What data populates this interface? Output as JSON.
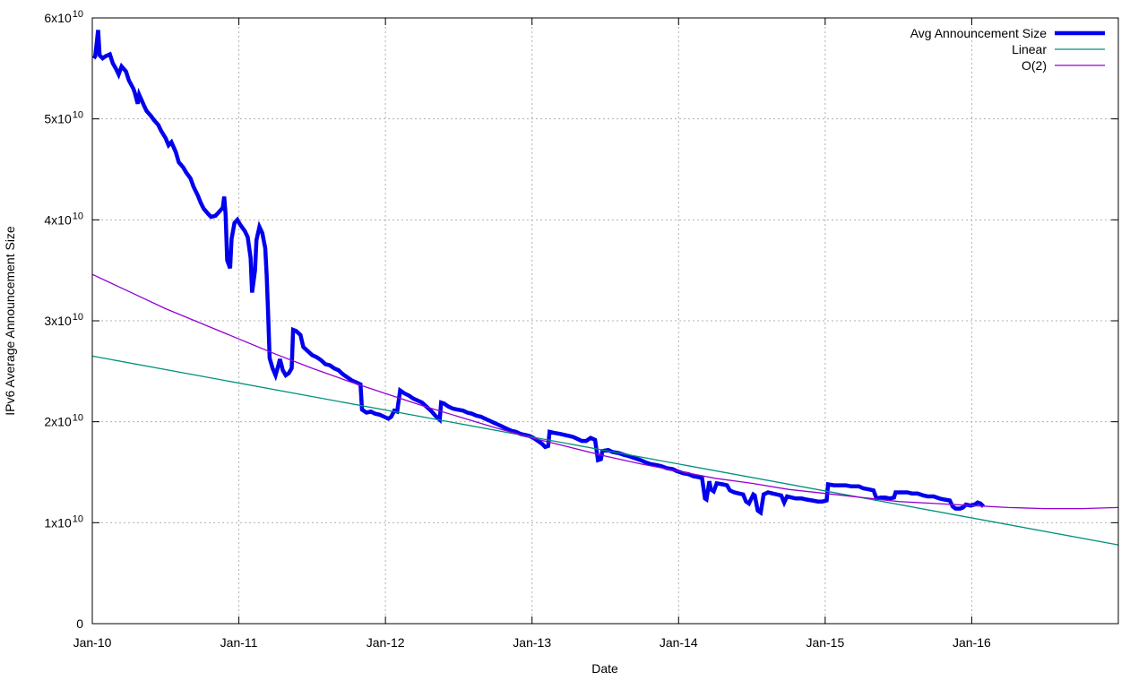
{
  "figure": {
    "background": "#ffffff",
    "border_color": "#000000",
    "grid_color": "#b0b0b0",
    "tick_color": "#000000",
    "text_color": "#000000"
  },
  "chart_data": {
    "type": "line",
    "title": "",
    "xlabel": "Date",
    "ylabel": "IPv6 Average Announcement Size",
    "xlim": [
      0,
      7
    ],
    "ylim": [
      0,
      60000000000
    ],
    "y_scale": 10000000000,
    "grid": true,
    "legend_position": "top-right-inside",
    "x_ticks": [
      {
        "u": 0,
        "label": "Jan-10"
      },
      {
        "u": 1,
        "label": "Jan-11"
      },
      {
        "u": 2,
        "label": "Jan-12"
      },
      {
        "u": 3,
        "label": "Jan-13"
      },
      {
        "u": 4,
        "label": "Jan-14"
      },
      {
        "u": 5,
        "label": "Jan-15"
      },
      {
        "u": 6,
        "label": "Jan-16"
      }
    ],
    "y_ticks": [
      {
        "v": 0,
        "base": "0",
        "exp": ""
      },
      {
        "v": 1,
        "base": "1x10",
        "exp": "10"
      },
      {
        "v": 2,
        "base": "2x10",
        "exp": "10"
      },
      {
        "v": 3,
        "base": "3x10",
        "exp": "10"
      },
      {
        "v": 4,
        "base": "4x10",
        "exp": "10"
      },
      {
        "v": 5,
        "base": "5x10",
        "exp": "10"
      },
      {
        "v": 6,
        "base": "6x10",
        "exp": "10"
      }
    ],
    "series": [
      {
        "name": "Avg Announcement Size",
        "color": "#0000ee",
        "stroke_width": 4.5,
        "points": [
          [
            0.01,
            5.6
          ],
          [
            0.02,
            5.62
          ],
          [
            0.04,
            5.88
          ],
          [
            0.05,
            5.63
          ],
          [
            0.07,
            5.6
          ],
          [
            0.09,
            5.62
          ],
          [
            0.12,
            5.64
          ],
          [
            0.14,
            5.55
          ],
          [
            0.16,
            5.5
          ],
          [
            0.18,
            5.44
          ],
          [
            0.2,
            5.52
          ],
          [
            0.23,
            5.47
          ],
          [
            0.25,
            5.38
          ],
          [
            0.28,
            5.3
          ],
          [
            0.29,
            5.26
          ],
          [
            0.31,
            5.15
          ],
          [
            0.32,
            5.24
          ],
          [
            0.35,
            5.14
          ],
          [
            0.37,
            5.08
          ],
          [
            0.4,
            5.03
          ],
          [
            0.42,
            4.99
          ],
          [
            0.45,
            4.94
          ],
          [
            0.47,
            4.88
          ],
          [
            0.5,
            4.81
          ],
          [
            0.52,
            4.74
          ],
          [
            0.54,
            4.77
          ],
          [
            0.57,
            4.67
          ],
          [
            0.59,
            4.57
          ],
          [
            0.62,
            4.52
          ],
          [
            0.64,
            4.47
          ],
          [
            0.67,
            4.41
          ],
          [
            0.69,
            4.33
          ],
          [
            0.72,
            4.24
          ],
          [
            0.74,
            4.17
          ],
          [
            0.76,
            4.11
          ],
          [
            0.79,
            4.06
          ],
          [
            0.81,
            4.03
          ],
          [
            0.84,
            4.04
          ],
          [
            0.86,
            4.07
          ],
          [
            0.89,
            4.12
          ],
          [
            0.9,
            4.23
          ],
          [
            0.91,
            4.05
          ],
          [
            0.92,
            3.6
          ],
          [
            0.94,
            3.52
          ],
          [
            0.95,
            3.81
          ],
          [
            0.97,
            3.97
          ],
          [
            0.99,
            4.0
          ],
          [
            1.01,
            3.95
          ],
          [
            1.04,
            3.89
          ],
          [
            1.06,
            3.83
          ],
          [
            1.08,
            3.62
          ],
          [
            1.09,
            3.28
          ],
          [
            1.11,
            3.5
          ],
          [
            1.12,
            3.8
          ],
          [
            1.14,
            3.93
          ],
          [
            1.16,
            3.87
          ],
          [
            1.18,
            3.72
          ],
          [
            1.19,
            3.45
          ],
          [
            1.2,
            3.05
          ],
          [
            1.21,
            2.63
          ],
          [
            1.23,
            2.53
          ],
          [
            1.25,
            2.46
          ],
          [
            1.27,
            2.56
          ],
          [
            1.28,
            2.62
          ],
          [
            1.3,
            2.51
          ],
          [
            1.32,
            2.46
          ],
          [
            1.34,
            2.48
          ],
          [
            1.36,
            2.53
          ],
          [
            1.37,
            2.91
          ],
          [
            1.39,
            2.9
          ],
          [
            1.42,
            2.86
          ],
          [
            1.44,
            2.74
          ],
          [
            1.47,
            2.7
          ],
          [
            1.5,
            2.66
          ],
          [
            1.53,
            2.64
          ],
          [
            1.56,
            2.61
          ],
          [
            1.59,
            2.57
          ],
          [
            1.62,
            2.56
          ],
          [
            1.65,
            2.53
          ],
          [
            1.68,
            2.51
          ],
          [
            1.71,
            2.47
          ],
          [
            1.74,
            2.44
          ],
          [
            1.77,
            2.41
          ],
          [
            1.8,
            2.39
          ],
          [
            1.83,
            2.37
          ],
          [
            1.84,
            2.12
          ],
          [
            1.87,
            2.09
          ],
          [
            1.9,
            2.1
          ],
          [
            1.93,
            2.08
          ],
          [
            1.96,
            2.07
          ],
          [
            1.99,
            2.05
          ],
          [
            2.02,
            2.03
          ],
          [
            2.04,
            2.05
          ],
          [
            2.06,
            2.11
          ],
          [
            2.08,
            2.1
          ],
          [
            2.1,
            2.31
          ],
          [
            2.13,
            2.28
          ],
          [
            2.16,
            2.26
          ],
          [
            2.19,
            2.23
          ],
          [
            2.22,
            2.21
          ],
          [
            2.25,
            2.19
          ],
          [
            2.28,
            2.15
          ],
          [
            2.31,
            2.11
          ],
          [
            2.34,
            2.06
          ],
          [
            2.37,
            2.02
          ],
          [
            2.38,
            2.19
          ],
          [
            2.4,
            2.18
          ],
          [
            2.43,
            2.15
          ],
          [
            2.46,
            2.13
          ],
          [
            2.49,
            2.12
          ],
          [
            2.53,
            2.11
          ],
          [
            2.56,
            2.09
          ],
          [
            2.59,
            2.08
          ],
          [
            2.62,
            2.06
          ],
          [
            2.65,
            2.05
          ],
          [
            2.68,
            2.03
          ],
          [
            2.71,
            2.01
          ],
          [
            2.74,
            1.99
          ],
          [
            2.77,
            1.97
          ],
          [
            2.8,
            1.95
          ],
          [
            2.83,
            1.93
          ],
          [
            2.86,
            1.91
          ],
          [
            2.89,
            1.9
          ],
          [
            2.92,
            1.88
          ],
          [
            2.95,
            1.87
          ],
          [
            2.98,
            1.86
          ],
          [
            3.01,
            1.84
          ],
          [
            3.04,
            1.81
          ],
          [
            3.07,
            1.78
          ],
          [
            3.09,
            1.75
          ],
          [
            3.11,
            1.76
          ],
          [
            3.12,
            1.9
          ],
          [
            3.15,
            1.89
          ],
          [
            3.19,
            1.88
          ],
          [
            3.22,
            1.87
          ],
          [
            3.25,
            1.86
          ],
          [
            3.28,
            1.85
          ],
          [
            3.31,
            1.83
          ],
          [
            3.34,
            1.81
          ],
          [
            3.37,
            1.81
          ],
          [
            3.4,
            1.84
          ],
          [
            3.43,
            1.82
          ],
          [
            3.45,
            1.62
          ],
          [
            3.47,
            1.63
          ],
          [
            3.48,
            1.71
          ],
          [
            3.52,
            1.72
          ],
          [
            3.55,
            1.7
          ],
          [
            3.59,
            1.69
          ],
          [
            3.63,
            1.67
          ],
          [
            3.66,
            1.66
          ],
          [
            3.7,
            1.64
          ],
          [
            3.74,
            1.62
          ],
          [
            3.77,
            1.6
          ],
          [
            3.81,
            1.58
          ],
          [
            3.85,
            1.57
          ],
          [
            3.88,
            1.56
          ],
          [
            3.92,
            1.54
          ],
          [
            3.96,
            1.53
          ],
          [
            3.99,
            1.51
          ],
          [
            4.03,
            1.49
          ],
          [
            4.07,
            1.48
          ],
          [
            4.1,
            1.46
          ],
          [
            4.14,
            1.45
          ],
          [
            4.16,
            1.44
          ],
          [
            4.18,
            1.24
          ],
          [
            4.19,
            1.23
          ],
          [
            4.21,
            1.41
          ],
          [
            4.22,
            1.33
          ],
          [
            4.24,
            1.31
          ],
          [
            4.26,
            1.39
          ],
          [
            4.3,
            1.38
          ],
          [
            4.33,
            1.37
          ],
          [
            4.35,
            1.32
          ],
          [
            4.38,
            1.3
          ],
          [
            4.41,
            1.29
          ],
          [
            4.44,
            1.28
          ],
          [
            4.46,
            1.21
          ],
          [
            4.48,
            1.19
          ],
          [
            4.51,
            1.28
          ],
          [
            4.52,
            1.27
          ],
          [
            4.54,
            1.12
          ],
          [
            4.56,
            1.1
          ],
          [
            4.58,
            1.28
          ],
          [
            4.61,
            1.3
          ],
          [
            4.64,
            1.29
          ],
          [
            4.67,
            1.28
          ],
          [
            4.7,
            1.27
          ],
          [
            4.72,
            1.2
          ],
          [
            4.74,
            1.26
          ],
          [
            4.77,
            1.25
          ],
          [
            4.8,
            1.24
          ],
          [
            4.84,
            1.24
          ],
          [
            4.87,
            1.23
          ],
          [
            4.91,
            1.22
          ],
          [
            4.95,
            1.21
          ],
          [
            4.98,
            1.21
          ],
          [
            5.01,
            1.22
          ],
          [
            5.02,
            1.38
          ],
          [
            5.06,
            1.37
          ],
          [
            5.1,
            1.37
          ],
          [
            5.14,
            1.37
          ],
          [
            5.18,
            1.36
          ],
          [
            5.23,
            1.36
          ],
          [
            5.26,
            1.34
          ],
          [
            5.3,
            1.33
          ],
          [
            5.33,
            1.32
          ],
          [
            5.35,
            1.24
          ],
          [
            5.38,
            1.25
          ],
          [
            5.41,
            1.25
          ],
          [
            5.44,
            1.24
          ],
          [
            5.47,
            1.25
          ],
          [
            5.48,
            1.3
          ],
          [
            5.52,
            1.3
          ],
          [
            5.56,
            1.3
          ],
          [
            5.59,
            1.29
          ],
          [
            5.63,
            1.29
          ],
          [
            5.67,
            1.27
          ],
          [
            5.7,
            1.26
          ],
          [
            5.74,
            1.26
          ],
          [
            5.78,
            1.24
          ],
          [
            5.81,
            1.23
          ],
          [
            5.85,
            1.22
          ],
          [
            5.87,
            1.16
          ],
          [
            5.89,
            1.14
          ],
          [
            5.92,
            1.14
          ],
          [
            5.94,
            1.15
          ],
          [
            5.96,
            1.18
          ],
          [
            5.99,
            1.17
          ],
          [
            6.02,
            1.18
          ],
          [
            6.04,
            1.2
          ],
          [
            6.06,
            1.19
          ],
          [
            6.08,
            1.16
          ]
        ]
      },
      {
        "name": "Linear",
        "color": "#00917b",
        "stroke_width": 1.3,
        "points": [
          [
            0,
            2.65
          ],
          [
            7,
            0.78
          ]
        ]
      },
      {
        "name": "O(2)",
        "color": "#9400d3",
        "stroke_width": 1.3,
        "points": [
          [
            0,
            3.46
          ],
          [
            0.25,
            3.29
          ],
          [
            0.5,
            3.12
          ],
          [
            0.75,
            2.97
          ],
          [
            1,
            2.82
          ],
          [
            1.25,
            2.67
          ],
          [
            1.5,
            2.53
          ],
          [
            1.75,
            2.4
          ],
          [
            2,
            2.28
          ],
          [
            2.25,
            2.16
          ],
          [
            2.5,
            2.05
          ],
          [
            2.75,
            1.94
          ],
          [
            3,
            1.84
          ],
          [
            3.25,
            1.75
          ],
          [
            3.5,
            1.66
          ],
          [
            3.75,
            1.58
          ],
          [
            4,
            1.51
          ],
          [
            4.25,
            1.44
          ],
          [
            4.5,
            1.39
          ],
          [
            4.75,
            1.33
          ],
          [
            5,
            1.29
          ],
          [
            5.25,
            1.25
          ],
          [
            5.5,
            1.21
          ],
          [
            5.75,
            1.19
          ],
          [
            6,
            1.17
          ],
          [
            6.25,
            1.15
          ],
          [
            6.5,
            1.14
          ],
          [
            6.75,
            1.14
          ],
          [
            7,
            1.15
          ]
        ]
      }
    ]
  }
}
